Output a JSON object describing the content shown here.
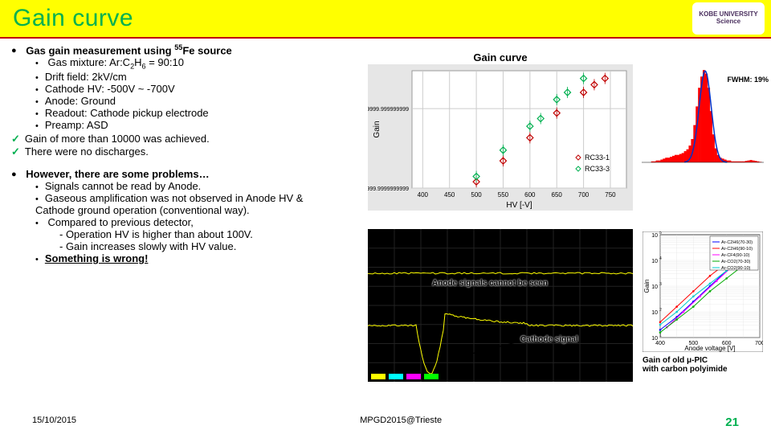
{
  "title": "Gain curve",
  "logo_text": "KOBE UNIVERSITY Science",
  "section1_heading": "Gas gain measurement using ",
  "section1_heading_sup": "55",
  "section1_heading_after": "Fe source",
  "s1_items": {
    "a": "Gas mixture: Ar:C",
    "a_sub": "2",
    "a_mid": "H",
    "a_sub2": "6",
    "a_end": " = 90:10",
    "b": "Drift field: 2kV/cm",
    "c": "Cathode HV: -500V ~ -700V",
    "d": "Anode: Ground",
    "e": "Readout: Cathode pickup electrode",
    "f": "Preamp: ASD"
  },
  "checks": {
    "a": "Gain of more than 10000 was achieved.",
    "b": "There were no discharges."
  },
  "section2_heading": "However, there are some problems…",
  "s2_items": {
    "a": "Signals cannot be read by Anode.",
    "b": "Gaseous amplification was not observed in Anode HV & Cathode ground operation (conventional way).",
    "c": "Compared to previous detector,",
    "c1": "- Operation HV is higher than about 100V.",
    "c2": "- Gain increases slowly with HV value.",
    "d": "Something is wrong!"
  },
  "chart1": {
    "title": "Gain curve",
    "xlabel": "HV [-V]",
    "ylabel": "Gain",
    "xlim": [
      380,
      780
    ],
    "ylim_ticks": [
      "999.9999999999",
      "9999.999999999"
    ],
    "xticks": [
      400,
      450,
      500,
      550,
      600,
      650,
      700,
      750
    ],
    "bg": "#e6e6e6",
    "plot_bg": "#ffffff",
    "grid": "#cccccc",
    "legend": [
      {
        "label": "RC33-1",
        "color": "#c00000",
        "marker": "diamond"
      },
      {
        "label": "RC33-3",
        "color": "#00b050",
        "marker": "diamond"
      }
    ],
    "series": [
      {
        "color": "#c00000",
        "points": [
          [
            500,
            1200
          ],
          [
            550,
            2200
          ],
          [
            600,
            4300
          ],
          [
            650,
            8800
          ],
          [
            700,
            16000
          ],
          [
            720,
            20000
          ],
          [
            740,
            24000
          ]
        ]
      },
      {
        "color": "#00b050",
        "points": [
          [
            500,
            1400
          ],
          [
            550,
            3000
          ],
          [
            600,
            6000
          ],
          [
            620,
            7500
          ],
          [
            650,
            13000
          ],
          [
            670,
            16000
          ],
          [
            700,
            24000
          ]
        ]
      }
    ]
  },
  "hist": {
    "bg": "#ffffff",
    "bar_color": "#ff0000",
    "fit_color": "#0033cc",
    "annot": "FWHM: 19%",
    "bins": [
      0,
      0,
      0,
      0,
      0.01,
      0.01,
      0.02,
      0.02,
      0.03,
      0.04,
      0.05,
      0.05,
      0.06,
      0.07,
      0.08,
      0.08,
      0.09,
      0.1,
      0.12,
      0.14,
      0.18,
      0.25,
      0.4,
      0.6,
      0.8,
      0.92,
      0.99,
      0.95,
      0.8,
      0.55,
      0.3,
      0.15,
      0.08,
      0.05,
      0.04,
      0.03,
      0.02,
      0.02,
      0.01,
      0.01,
      0.01,
      0.01,
      0.01,
      0.01,
      0.015,
      0.02,
      0.025,
      0.02,
      0.015,
      0.01,
      0.005,
      0
    ]
  },
  "scope": {
    "bg": "#000000",
    "trace_color": "#ffff00",
    "annot1": "Anode signals cannot be seen",
    "annot2": "Cathode signal"
  },
  "oldchart": {
    "bg": "#ffffff",
    "xlabel": "Anode voltage [V]",
    "ylabel": "Gain",
    "caption": "Gain of old μ-PIC\nwith carbon polyimide",
    "legend": [
      {
        "label": "Ar-C2H6(70-30)",
        "color": "#0000ff"
      },
      {
        "label": "Ar-C2H6(90-10)",
        "color": "#ff0000"
      },
      {
        "label": "Ar-CF4(90-10)",
        "color": "#ff00ff"
      },
      {
        "label": "Ar-CO2(70-30)",
        "color": "#00aa00"
      },
      {
        "label": "Ar-CO2(90-10)",
        "color": "#00cccc"
      }
    ]
  },
  "footer": {
    "date": "15/10/2015",
    "conf": "MPGD2015@Trieste",
    "page": "21"
  }
}
